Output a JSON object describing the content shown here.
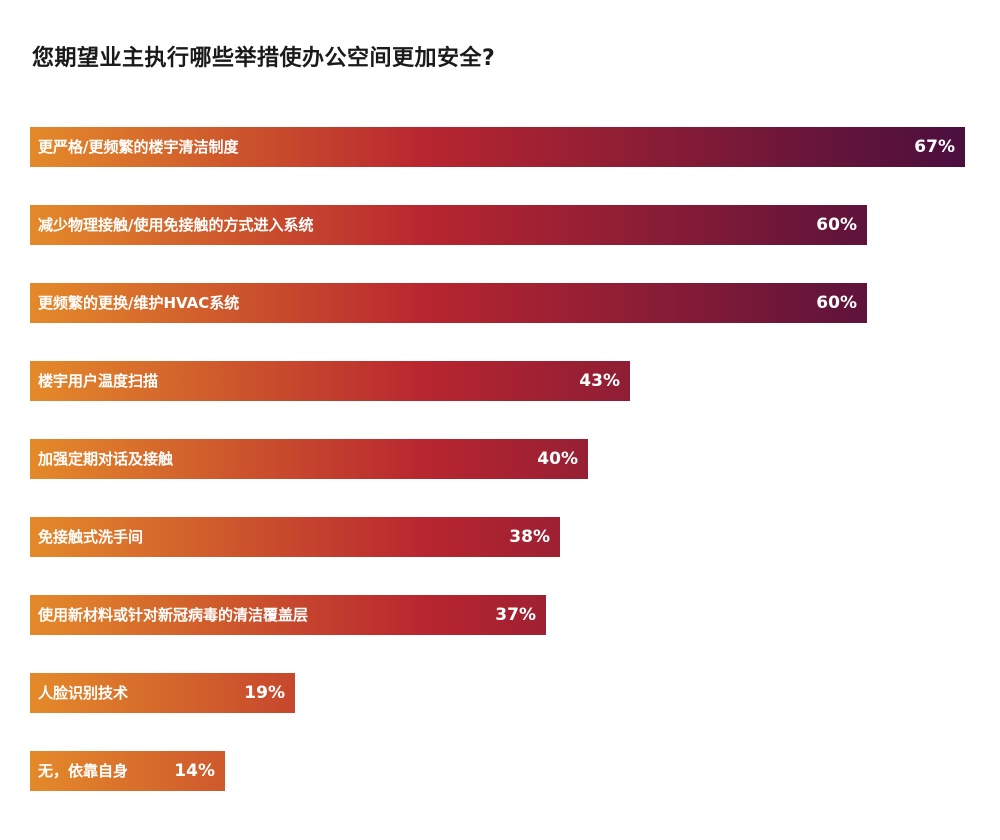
{
  "chart_data": {
    "type": "bar",
    "orientation": "horizontal",
    "title": "您期望业主执行哪些举措使办公空间更加安全?",
    "categories": [
      "更严格/更频繁的楼宇清洁制度",
      "减少物理接触/使用免接触的方式进入系统",
      "更频繁的更换/维护HVAC系统",
      "楼宇用户温度扫描",
      "加强定期对话及接触",
      "免接触式洗手间",
      "使用新材料或针对新冠病毒的清洁覆盖层",
      "人脸识别技术",
      "无，依靠自身"
    ],
    "values": [
      67,
      60,
      60,
      43,
      40,
      38,
      37,
      19,
      14
    ],
    "value_labels": [
      "67%",
      "60%",
      "60%",
      "43%",
      "40%",
      "38%",
      "37%",
      "19%",
      "14%"
    ],
    "xlim": [
      0,
      67
    ],
    "grid": false,
    "legend": "none",
    "colors": {
      "start": "#e48a2a",
      "mid": "#b8262f",
      "end": "#4a0f3e"
    }
  }
}
